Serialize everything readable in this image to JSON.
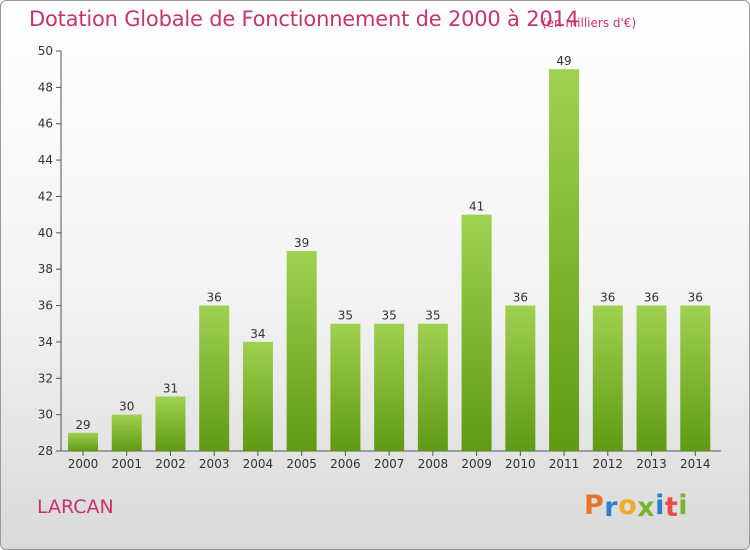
{
  "header": {
    "title": "Dotation Globale de Fonctionnement de 2000 à 2014",
    "unit": "(en milliers d'€)"
  },
  "footer": {
    "commune": "LARCAN",
    "logo_letters": [
      "P",
      "r",
      "o",
      "x",
      "i",
      "t",
      "i"
    ],
    "logo_colors": [
      "#e8732a",
      "#2b7fcf",
      "#f0a92b",
      "#7ab42a",
      "#2b7fcf",
      "#e84a4a",
      "#7ab42a"
    ]
  },
  "colors": {
    "title": "#c8336b",
    "bar_top": "#9fd150",
    "bar_bottom": "#5f9a14"
  },
  "chart_data": {
    "type": "bar",
    "title": "Dotation Globale de Fonctionnement de 2000 à 2014",
    "subtitle": "(en milliers d'€)",
    "categories": [
      "2000",
      "2001",
      "2002",
      "2003",
      "2004",
      "2005",
      "2006",
      "2007",
      "2008",
      "2009",
      "2010",
      "2011",
      "2012",
      "2013",
      "2014"
    ],
    "values": [
      29,
      30,
      31,
      36,
      34,
      39,
      35,
      35,
      35,
      41,
      36,
      49,
      36,
      36,
      36
    ],
    "ylim": [
      28,
      50
    ],
    "yticks": [
      28,
      30,
      32,
      34,
      36,
      38,
      40,
      42,
      44,
      46,
      48,
      50
    ],
    "grid": false,
    "data_labels": true
  }
}
